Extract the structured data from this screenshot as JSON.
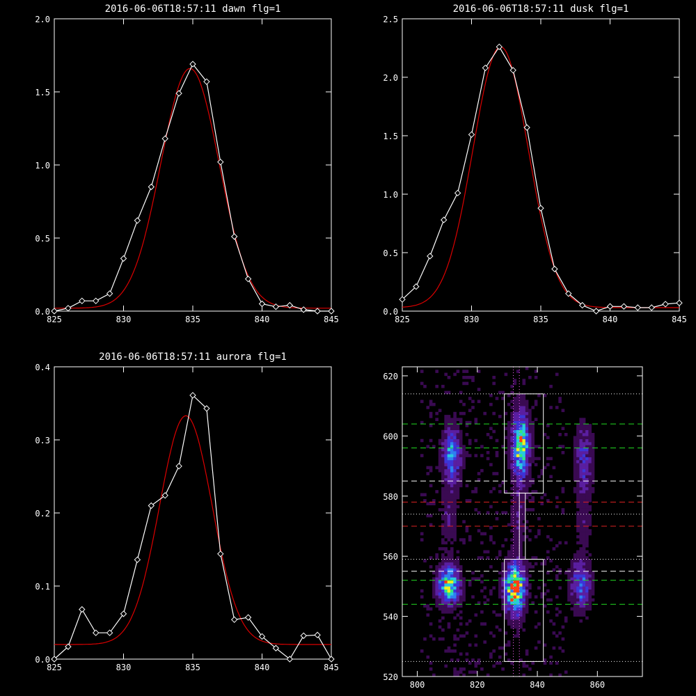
{
  "chart_data": [
    {
      "type": "line",
      "title": "2016-06-06T18:57:11 dawn flg=1",
      "xlim": [
        825,
        845
      ],
      "ylim": [
        0,
        2.0
      ],
      "xticks": [
        825,
        830,
        835,
        840,
        845
      ],
      "yticks": [
        0.0,
        0.5,
        1.0,
        1.5,
        2.0
      ],
      "ytick_labels": [
        "0.0",
        "0.5",
        "1.0",
        "1.5",
        "2.0"
      ],
      "series": [
        {
          "color": "#ffffff",
          "marker": "diamond",
          "x": [
            825,
            826,
            827,
            828,
            829,
            830,
            831,
            832,
            833,
            834,
            835,
            836,
            837,
            838,
            839,
            840,
            841,
            842,
            843,
            844,
            845
          ],
          "y": [
            0.0,
            0.02,
            0.07,
            0.07,
            0.12,
            0.36,
            0.62,
            0.85,
            1.18,
            1.49,
            1.69,
            1.57,
            1.02,
            0.51,
            0.22,
            0.05,
            0.03,
            0.04,
            0.01,
            0.0,
            0.0
          ]
        },
        {
          "color": "#dd0000",
          "kind": "gaussian-fit",
          "amplitude": 1.64,
          "center": 834.8,
          "sigma": 2.1,
          "offset": 0.02
        }
      ]
    },
    {
      "type": "line",
      "title": "2016-06-06T18:57:11 dusk flg=1",
      "xlim": [
        825,
        845
      ],
      "ylim": [
        0,
        2.5
      ],
      "xticks": [
        825,
        830,
        835,
        840,
        845
      ],
      "yticks": [
        0.0,
        0.5,
        1.0,
        1.5,
        2.0,
        2.5
      ],
      "ytick_labels": [
        "0.0",
        "0.5",
        "1.0",
        "1.5",
        "2.0",
        "2.5"
      ],
      "series": [
        {
          "color": "#ffffff",
          "marker": "diamond",
          "x": [
            825,
            826,
            827,
            828,
            829,
            830,
            831,
            832,
            833,
            834,
            835,
            836,
            837,
            838,
            839,
            840,
            841,
            842,
            843,
            844,
            845
          ],
          "y": [
            0.1,
            0.21,
            0.47,
            0.78,
            1.01,
            1.51,
            2.08,
            2.26,
            2.06,
            1.57,
            0.88,
            0.36,
            0.15,
            0.05,
            0.0,
            0.04,
            0.04,
            0.03,
            0.03,
            0.06,
            0.07
          ]
        },
        {
          "color": "#dd0000",
          "kind": "gaussian-fit",
          "amplitude": 2.23,
          "center": 832.1,
          "sigma": 2.0,
          "offset": 0.03
        }
      ]
    },
    {
      "type": "line",
      "title": "2016-06-06T18:57:11 aurora flg=1",
      "xlim": [
        825,
        845
      ],
      "ylim": [
        0,
        0.4
      ],
      "xticks": [
        825,
        830,
        835,
        840,
        845
      ],
      "yticks": [
        0.0,
        0.1,
        0.2,
        0.3,
        0.4
      ],
      "ytick_labels": [
        "0.0",
        "0.1",
        "0.2",
        "0.3",
        "0.4"
      ],
      "series": [
        {
          "color": "#ffffff",
          "marker": "diamond",
          "x": [
            825,
            826,
            827,
            828,
            829,
            830,
            831,
            832,
            833,
            834,
            835,
            836,
            837,
            838,
            839,
            840,
            841,
            842,
            843,
            844,
            845
          ],
          "y": [
            0.0,
            0.017,
            0.068,
            0.036,
            0.036,
            0.062,
            0.136,
            0.21,
            0.224,
            0.264,
            0.361,
            0.343,
            0.144,
            0.054,
            0.057,
            0.031,
            0.015,
            0.0,
            0.032,
            0.033,
            0.0
          ]
        },
        {
          "color": "#dd0000",
          "kind": "gaussian-fit",
          "amplitude": 0.313,
          "center": 834.5,
          "sigma": 1.9,
          "offset": 0.02
        }
      ]
    },
    {
      "type": "heatmap",
      "xlim": [
        795,
        875
      ],
      "ylim": [
        520,
        623
      ],
      "xticks": [
        800,
        820,
        840,
        860
      ],
      "yticks": [
        520,
        540,
        560,
        580,
        600,
        620
      ],
      "colormap": [
        "#3a0a52",
        "#5a1ea0",
        "#3d34d8",
        "#2f7ff0",
        "#28c8e0",
        "#30e880",
        "#f0f020",
        "#ff4010"
      ],
      "blobs": [
        {
          "x": 811,
          "y": 593,
          "sx": 1.8,
          "sy": 6,
          "amp": 0.45
        },
        {
          "x": 834,
          "y": 596,
          "sx": 1.8,
          "sy": 7,
          "amp": 0.7
        },
        {
          "x": 855,
          "y": 592,
          "sx": 1.8,
          "sy": 7,
          "amp": 0.25
        },
        {
          "x": 810,
          "y": 550,
          "sx": 2.2,
          "sy": 4,
          "amp": 0.7
        },
        {
          "x": 832,
          "y": 549,
          "sx": 2.0,
          "sy": 5,
          "amp": 1.0
        },
        {
          "x": 854,
          "y": 550,
          "sx": 2.0,
          "sy": 5,
          "amp": 0.4
        },
        {
          "x": 810,
          "y": 572,
          "sx": 1.5,
          "sy": 6,
          "amp": 0.12
        },
        {
          "x": 833,
          "y": 572,
          "sx": 1.5,
          "sy": 6,
          "amp": 0.12
        },
        {
          "x": 855,
          "y": 572,
          "sx": 1.5,
          "sy": 6,
          "amp": 0.1
        }
      ],
      "boxes": [
        {
          "x0": 829,
          "x1": 842,
          "y0": 581,
          "y1": 614,
          "color": "#ffffff"
        },
        {
          "x0": 829,
          "x1": 842,
          "y0": 525,
          "y1": 559,
          "color": "#ffffff"
        },
        {
          "x0": 834,
          "x1": 836,
          "y0": 559,
          "y1": 581,
          "color": "#ffffff"
        }
      ],
      "vlines_dotted": [
        {
          "x": 832,
          "color": "#ff66ff"
        },
        {
          "x": 834,
          "color": "#ff66ff"
        }
      ],
      "hlines": [
        {
          "y": 614,
          "style": "dotted",
          "color": "#ffffff"
        },
        {
          "y": 604,
          "style": "dashed",
          "color": "#22dd22"
        },
        {
          "y": 596,
          "style": "dashed",
          "color": "#22dd22"
        },
        {
          "y": 585,
          "style": "dashed",
          "color": "#ffffff"
        },
        {
          "y": 578,
          "style": "dashed",
          "color": "#dd2222"
        },
        {
          "y": 574,
          "style": "dotted",
          "color": "#ffffff"
        },
        {
          "y": 570,
          "style": "dashed",
          "color": "#dd2222"
        },
        {
          "y": 559,
          "style": "dotted",
          "color": "#ffffff"
        },
        {
          "y": 555,
          "style": "dashed",
          "color": "#ffffff"
        },
        {
          "y": 552,
          "style": "dashed",
          "color": "#22dd22"
        },
        {
          "y": 544,
          "style": "dashed",
          "color": "#22dd22"
        },
        {
          "y": 525,
          "style": "dotted",
          "color": "#ffffff"
        }
      ]
    }
  ]
}
